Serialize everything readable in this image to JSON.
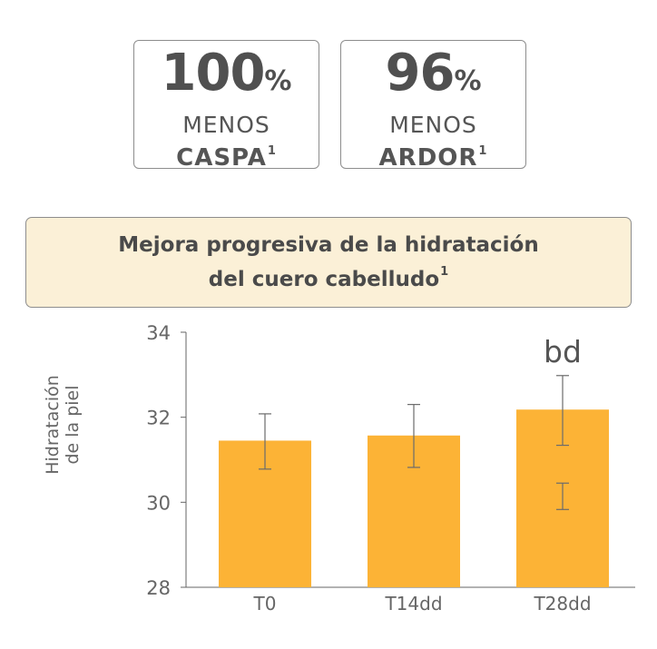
{
  "stats": [
    {
      "number": "100",
      "unit": "%",
      "line1": "MENOS",
      "line2": "CASPA",
      "footnote": "1"
    },
    {
      "number": "96",
      "unit": "%",
      "line1": "MENOS",
      "line2": "ARDOR",
      "footnote": "1"
    }
  ],
  "banner": {
    "title": "Mejora progresiva de la hidratación\ndel cuero cabelludo",
    "footnote": "1"
  },
  "colors": {
    "bar": "#fcb336",
    "banner_bg": "#fbf0d7",
    "text": "#4a4a4a"
  },
  "chart_data": {
    "type": "bar",
    "title": "",
    "ylabel": "Hidratación de la piel",
    "ylabel_lines": [
      "Hidratación",
      "de la piel"
    ],
    "xlabel": "",
    "categories": [
      "T0",
      "T14dd",
      "T28dd"
    ],
    "values": [
      31.45,
      31.57,
      32.18
    ],
    "error_bars": [
      {
        "low": 30.78,
        "high": 32.08
      },
      {
        "low": 30.82,
        "high": 32.3
      },
      {
        "low": 31.34,
        "high": 32.98
      }
    ],
    "extra_error_bar": {
      "category": "T28dd",
      "low": 29.83,
      "high": 30.45
    },
    "annotations": [
      {
        "category": "T28dd",
        "text": "bd"
      }
    ],
    "ylim": [
      28,
      34
    ],
    "yticks": [
      28,
      30,
      32,
      34
    ],
    "grid": false,
    "legend": "none"
  }
}
